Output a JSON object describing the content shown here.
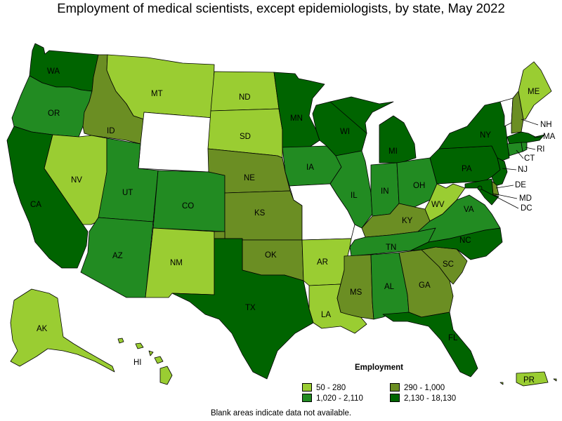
{
  "title": "Employment of medical scientists, except epidemiologists, by state, May 2022",
  "legend": {
    "title": "Employment",
    "items": [
      {
        "label": "50 - 280",
        "color": "#9acd32"
      },
      {
        "label": "290 - 1,000",
        "color": "#6b8e23"
      },
      {
        "label": "1,020 - 2,110",
        "color": "#228b22"
      },
      {
        "label": "2,130 - 18,130",
        "color": "#006400"
      }
    ]
  },
  "note": "Blank areas indicate data not available.",
  "colors": {
    "c1": "#9acd32",
    "c2": "#6b8e23",
    "c3": "#228b22",
    "c4": "#006400",
    "na": "#ffffff"
  },
  "states": [
    {
      "id": "WA",
      "label": "WA",
      "class": "c4"
    },
    {
      "id": "OR",
      "label": "OR",
      "class": "c3"
    },
    {
      "id": "CA",
      "label": "CA",
      "class": "c4"
    },
    {
      "id": "ID",
      "label": "ID",
      "class": "c2"
    },
    {
      "id": "NV",
      "label": "NV",
      "class": "c1"
    },
    {
      "id": "MT",
      "label": "MT",
      "class": "c1"
    },
    {
      "id": "WY",
      "label": "",
      "class": "na"
    },
    {
      "id": "UT",
      "label": "UT",
      "class": "c3"
    },
    {
      "id": "AZ",
      "label": "AZ",
      "class": "c3"
    },
    {
      "id": "CO",
      "label": "CO",
      "class": "c3"
    },
    {
      "id": "NM",
      "label": "NM",
      "class": "c1"
    },
    {
      "id": "ND",
      "label": "ND",
      "class": "c1"
    },
    {
      "id": "SD",
      "label": "SD",
      "class": "c1"
    },
    {
      "id": "NE",
      "label": "NE",
      "class": "c2"
    },
    {
      "id": "KS",
      "label": "KS",
      "class": "c2"
    },
    {
      "id": "OK",
      "label": "OK",
      "class": "c2"
    },
    {
      "id": "TX",
      "label": "TX",
      "class": "c4"
    },
    {
      "id": "MN",
      "label": "MN",
      "class": "c4"
    },
    {
      "id": "IA",
      "label": "IA",
      "class": "c3"
    },
    {
      "id": "MO",
      "label": "",
      "class": "na"
    },
    {
      "id": "AR",
      "label": "AR",
      "class": "c1"
    },
    {
      "id": "LA",
      "label": "LA",
      "class": "c1"
    },
    {
      "id": "WI",
      "label": "WI",
      "class": "c4"
    },
    {
      "id": "IL",
      "label": "IL",
      "class": "c3"
    },
    {
      "id": "MI",
      "label": "MI",
      "class": "c4"
    },
    {
      "id": "IN",
      "label": "IN",
      "class": "c3"
    },
    {
      "id": "OH",
      "label": "OH",
      "class": "c3"
    },
    {
      "id": "KY",
      "label": "KY",
      "class": "c2"
    },
    {
      "id": "TN",
      "label": "TN",
      "class": "c3"
    },
    {
      "id": "MS",
      "label": "MS",
      "class": "c2"
    },
    {
      "id": "AL",
      "label": "AL",
      "class": "c3"
    },
    {
      "id": "GA",
      "label": "GA",
      "class": "c2"
    },
    {
      "id": "FL",
      "label": "FL",
      "class": "c4"
    },
    {
      "id": "SC",
      "label": "SC",
      "class": "c2"
    },
    {
      "id": "NC",
      "label": "NC",
      "class": "c4"
    },
    {
      "id": "VA",
      "label": "VA",
      "class": "c3"
    },
    {
      "id": "WV",
      "label": "WV",
      "class": "c1"
    },
    {
      "id": "PA",
      "label": "PA",
      "class": "c4"
    },
    {
      "id": "NY",
      "label": "NY",
      "class": "c4"
    },
    {
      "id": "VT",
      "label": "",
      "class": "na"
    },
    {
      "id": "NH",
      "label": "NH",
      "class": "c2"
    },
    {
      "id": "ME",
      "label": "ME",
      "class": "c1"
    },
    {
      "id": "MA",
      "label": "MA",
      "class": "c4"
    },
    {
      "id": "RI",
      "label": "RI",
      "class": "c3"
    },
    {
      "id": "CT",
      "label": "CT",
      "class": "c3"
    },
    {
      "id": "NJ",
      "label": "NJ",
      "class": "c4"
    },
    {
      "id": "DE",
      "label": "DE",
      "class": "c2"
    },
    {
      "id": "MD",
      "label": "MD",
      "class": "c4"
    },
    {
      "id": "DC",
      "label": "DC",
      "class": "c4"
    },
    {
      "id": "AK",
      "label": "AK",
      "class": "c1"
    },
    {
      "id": "HI",
      "label": "HI",
      "class": "c1"
    },
    {
      "id": "PR",
      "label": "PR",
      "class": "c1"
    }
  ]
}
